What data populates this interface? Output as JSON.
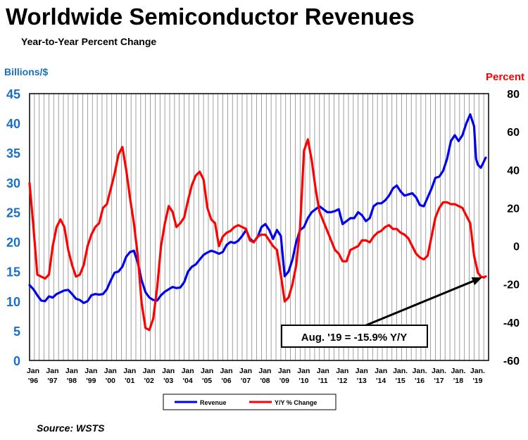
{
  "chart_data": {
    "type": "line",
    "title": "Worldwide Semiconductor Revenues",
    "subtitle": "Year-to-Year Percent Change",
    "y_left_label": "Billions/$",
    "y_right_label": "Percent",
    "y_left_ticks": [
      "45",
      "40",
      "35",
      "30",
      "25",
      "20",
      "15",
      "10",
      "5",
      "0"
    ],
    "y_right_ticks": [
      "80",
      "60",
      "40",
      "20",
      "0",
      "-20",
      "-40",
      "-60"
    ],
    "y_left_range": [
      0,
      45
    ],
    "y_right_range": [
      -60,
      80
    ],
    "x_range": [
      1996.0,
      2019.75
    ],
    "x_tick_labels": [
      {
        "top": "Jan",
        "bottom": "'96"
      },
      {
        "top": "Jan",
        "bottom": "'97"
      },
      {
        "top": "Jan",
        "bottom": "'98"
      },
      {
        "top": "Jan",
        "bottom": "'99"
      },
      {
        "top": "Jan",
        "bottom": "'00"
      },
      {
        "top": "Jan",
        "bottom": "'01"
      },
      {
        "top": "Jan",
        "bottom": "'02"
      },
      {
        "top": "Jan",
        "bottom": "'03"
      },
      {
        "top": "Jan",
        "bottom": "'04"
      },
      {
        "top": "Jan",
        "bottom": "'05"
      },
      {
        "top": "Jan",
        "bottom": "'06"
      },
      {
        "top": "Jan",
        "bottom": "'07"
      },
      {
        "top": "Jan",
        "bottom": "'08"
      },
      {
        "top": "Jan",
        "bottom": "'09"
      },
      {
        "top": "Jan",
        "bottom": "'10"
      },
      {
        "top": "Jan",
        "bottom": "'11"
      },
      {
        "top": "Jan",
        "bottom": "'12"
      },
      {
        "top": "Jan",
        "bottom": "'13"
      },
      {
        "top": "Jan",
        "bottom": "'14"
      },
      {
        "top": "Jan.",
        "bottom": "'15"
      },
      {
        "top": "Jan.",
        "bottom": "'16"
      },
      {
        "top": "Jan.",
        "bottom": "'17"
      },
      {
        "top": "Jan.",
        "bottom": "'18"
      },
      {
        "top": "Jan.",
        "bottom": "'19"
      }
    ],
    "grid": true,
    "legend_position": "bottom",
    "series": [
      {
        "name": "Revenue",
        "axis": "left",
        "color": "#0000ee",
        "points": [
          [
            1996.0,
            12.7
          ],
          [
            1996.2,
            12.0
          ],
          [
            1996.4,
            11.0
          ],
          [
            1996.6,
            10.1
          ],
          [
            1996.8,
            10.0
          ],
          [
            1997.0,
            10.8
          ],
          [
            1997.2,
            10.6
          ],
          [
            1997.4,
            11.2
          ],
          [
            1997.6,
            11.5
          ],
          [
            1997.8,
            11.8
          ],
          [
            1998.0,
            11.9
          ],
          [
            1998.2,
            11.2
          ],
          [
            1998.4,
            10.4
          ],
          [
            1998.6,
            10.2
          ],
          [
            1998.8,
            9.7
          ],
          [
            1999.0,
            10.0
          ],
          [
            1999.2,
            11.0
          ],
          [
            1999.4,
            11.2
          ],
          [
            1999.6,
            11.1
          ],
          [
            1999.8,
            11.2
          ],
          [
            2000.0,
            12.0
          ],
          [
            2000.2,
            13.5
          ],
          [
            2000.4,
            14.8
          ],
          [
            2000.6,
            15.0
          ],
          [
            2000.8,
            15.8
          ],
          [
            2001.0,
            17.5
          ],
          [
            2001.2,
            18.3
          ],
          [
            2001.4,
            18.5
          ],
          [
            2001.6,
            16.5
          ],
          [
            2001.8,
            13.5
          ],
          [
            2002.0,
            11.5
          ],
          [
            2002.2,
            10.6
          ],
          [
            2002.4,
            10.2
          ],
          [
            2002.6,
            10.1
          ],
          [
            2002.8,
            11.0
          ],
          [
            2003.0,
            11.6
          ],
          [
            2003.2,
            12.0
          ],
          [
            2003.4,
            12.4
          ],
          [
            2003.6,
            12.2
          ],
          [
            2003.8,
            12.3
          ],
          [
            2004.0,
            13.2
          ],
          [
            2004.2,
            15.0
          ],
          [
            2004.4,
            15.8
          ],
          [
            2004.6,
            16.2
          ],
          [
            2004.8,
            17.0
          ],
          [
            2005.0,
            17.8
          ],
          [
            2005.2,
            18.2
          ],
          [
            2005.4,
            18.5
          ],
          [
            2005.6,
            18.3
          ],
          [
            2005.8,
            18.0
          ],
          [
            2006.0,
            18.3
          ],
          [
            2006.2,
            19.5
          ],
          [
            2006.4,
            20.0
          ],
          [
            2006.6,
            19.8
          ],
          [
            2006.8,
            20.2
          ],
          [
            2007.0,
            21.0
          ],
          [
            2007.2,
            22.0
          ],
          [
            2007.4,
            20.5
          ],
          [
            2007.6,
            20.0
          ],
          [
            2007.8,
            20.8
          ],
          [
            2008.0,
            22.5
          ],
          [
            2008.2,
            23.0
          ],
          [
            2008.4,
            22.0
          ],
          [
            2008.6,
            20.5
          ],
          [
            2008.8,
            22.0
          ],
          [
            2009.0,
            21.0
          ],
          [
            2009.2,
            14.2
          ],
          [
            2009.4,
            15.0
          ],
          [
            2009.6,
            17.0
          ],
          [
            2009.8,
            20.0
          ],
          [
            2010.0,
            22.0
          ],
          [
            2010.2,
            22.5
          ],
          [
            2010.4,
            24.0
          ],
          [
            2010.6,
            25.0
          ],
          [
            2010.8,
            25.5
          ],
          [
            2011.0,
            26.0
          ],
          [
            2011.2,
            25.5
          ],
          [
            2011.4,
            25.0
          ],
          [
            2011.6,
            25.0
          ],
          [
            2011.8,
            25.2
          ],
          [
            2012.0,
            25.5
          ],
          [
            2012.2,
            23.0
          ],
          [
            2012.4,
            23.5
          ],
          [
            2012.6,
            24.0
          ],
          [
            2012.8,
            24.0
          ],
          [
            2013.0,
            25.0
          ],
          [
            2013.2,
            24.5
          ],
          [
            2013.4,
            23.5
          ],
          [
            2013.6,
            24.0
          ],
          [
            2013.8,
            26.0
          ],
          [
            2014.0,
            26.5
          ],
          [
            2014.2,
            26.5
          ],
          [
            2014.4,
            27.0
          ],
          [
            2014.6,
            27.8
          ],
          [
            2014.8,
            29.0
          ],
          [
            2015.0,
            29.5
          ],
          [
            2015.2,
            28.5
          ],
          [
            2015.4,
            27.8
          ],
          [
            2015.6,
            28.0
          ],
          [
            2015.8,
            28.2
          ],
          [
            2016.0,
            27.5
          ],
          [
            2016.2,
            26.2
          ],
          [
            2016.4,
            26.0
          ],
          [
            2016.6,
            27.5
          ],
          [
            2016.8,
            29.0
          ],
          [
            2017.0,
            30.8
          ],
          [
            2017.2,
            31.0
          ],
          [
            2017.4,
            32.0
          ],
          [
            2017.6,
            34.0
          ],
          [
            2017.8,
            37.0
          ],
          [
            2018.0,
            38.0
          ],
          [
            2018.2,
            37.0
          ],
          [
            2018.4,
            38.0
          ],
          [
            2018.6,
            40.0
          ],
          [
            2018.8,
            41.5
          ],
          [
            2019.0,
            39.5
          ],
          [
            2019.1,
            34.0
          ],
          [
            2019.2,
            33.0
          ],
          [
            2019.35,
            32.5
          ],
          [
            2019.5,
            33.5
          ],
          [
            2019.6,
            34.2
          ]
        ]
      },
      {
        "name": "Y/Y % Change",
        "axis": "right",
        "color": "#ff0000",
        "points": [
          [
            1996.0,
            33
          ],
          [
            1996.2,
            10
          ],
          [
            1996.4,
            -15
          ],
          [
            1996.6,
            -16
          ],
          [
            1996.8,
            -17
          ],
          [
            1997.0,
            -15
          ],
          [
            1997.2,
            0
          ],
          [
            1997.4,
            10
          ],
          [
            1997.6,
            14
          ],
          [
            1997.8,
            10
          ],
          [
            1998.0,
            -2
          ],
          [
            1998.2,
            -10
          ],
          [
            1998.4,
            -16
          ],
          [
            1998.6,
            -15
          ],
          [
            1998.8,
            -10
          ],
          [
            1999.0,
            0
          ],
          [
            1999.2,
            6
          ],
          [
            1999.4,
            10
          ],
          [
            1999.6,
            12
          ],
          [
            1999.8,
            20
          ],
          [
            2000.0,
            22
          ],
          [
            2000.2,
            30
          ],
          [
            2000.4,
            38
          ],
          [
            2000.6,
            48
          ],
          [
            2000.8,
            52
          ],
          [
            2001.0,
            40
          ],
          [
            2001.2,
            25
          ],
          [
            2001.4,
            12
          ],
          [
            2001.6,
            -5
          ],
          [
            2001.8,
            -30
          ],
          [
            2002.0,
            -43
          ],
          [
            2002.2,
            -44
          ],
          [
            2002.4,
            -38
          ],
          [
            2002.6,
            -22
          ],
          [
            2002.8,
            0
          ],
          [
            2003.0,
            12
          ],
          [
            2003.2,
            21
          ],
          [
            2003.4,
            18
          ],
          [
            2003.6,
            10
          ],
          [
            2003.8,
            12
          ],
          [
            2004.0,
            15
          ],
          [
            2004.2,
            24
          ],
          [
            2004.4,
            32
          ],
          [
            2004.6,
            37
          ],
          [
            2004.8,
            39
          ],
          [
            2005.0,
            35
          ],
          [
            2005.2,
            20
          ],
          [
            2005.4,
            14
          ],
          [
            2005.6,
            12
          ],
          [
            2005.8,
            0
          ],
          [
            2006.0,
            5
          ],
          [
            2006.2,
            7
          ],
          [
            2006.4,
            8
          ],
          [
            2006.6,
            10
          ],
          [
            2006.8,
            11
          ],
          [
            2007.0,
            10
          ],
          [
            2007.2,
            9
          ],
          [
            2007.4,
            3
          ],
          [
            2007.6,
            2
          ],
          [
            2007.8,
            5
          ],
          [
            2008.0,
            6
          ],
          [
            2008.2,
            6
          ],
          [
            2008.4,
            3
          ],
          [
            2008.6,
            0
          ],
          [
            2008.8,
            -2
          ],
          [
            2009.0,
            -15
          ],
          [
            2009.2,
            -29
          ],
          [
            2009.4,
            -27
          ],
          [
            2009.6,
            -20
          ],
          [
            2009.8,
            -10
          ],
          [
            2010.0,
            10
          ],
          [
            2010.2,
            50
          ],
          [
            2010.4,
            56
          ],
          [
            2010.6,
            45
          ],
          [
            2010.8,
            30
          ],
          [
            2011.0,
            18
          ],
          [
            2011.2,
            13
          ],
          [
            2011.4,
            8
          ],
          [
            2011.6,
            3
          ],
          [
            2011.8,
            -2
          ],
          [
            2012.0,
            -4
          ],
          [
            2012.2,
            -8
          ],
          [
            2012.4,
            -8
          ],
          [
            2012.6,
            -2
          ],
          [
            2012.8,
            -1
          ],
          [
            2013.0,
            0
          ],
          [
            2013.2,
            3
          ],
          [
            2013.4,
            3
          ],
          [
            2013.6,
            2
          ],
          [
            2013.8,
            5
          ],
          [
            2014.0,
            7
          ],
          [
            2014.2,
            8
          ],
          [
            2014.4,
            10
          ],
          [
            2014.6,
            11
          ],
          [
            2014.8,
            9
          ],
          [
            2015.0,
            9
          ],
          [
            2015.2,
            7
          ],
          [
            2015.4,
            6
          ],
          [
            2015.6,
            4
          ],
          [
            2015.8,
            0
          ],
          [
            2016.0,
            -4
          ],
          [
            2016.2,
            -6
          ],
          [
            2016.4,
            -7
          ],
          [
            2016.6,
            -5
          ],
          [
            2016.8,
            5
          ],
          [
            2017.0,
            15
          ],
          [
            2017.2,
            20
          ],
          [
            2017.4,
            23
          ],
          [
            2017.6,
            23
          ],
          [
            2017.8,
            22
          ],
          [
            2018.0,
            22
          ],
          [
            2018.2,
            21
          ],
          [
            2018.4,
            20
          ],
          [
            2018.6,
            16
          ],
          [
            2018.8,
            12
          ],
          [
            2019.0,
            -5
          ],
          [
            2019.2,
            -14
          ],
          [
            2019.35,
            -16
          ],
          [
            2019.5,
            -16.5
          ],
          [
            2019.6,
            -15.9
          ]
        ]
      }
    ],
    "annotation": {
      "text": "Aug. '19 = -15.9% Y/Y",
      "target_x": 2019.55,
      "target_y_right": -15.9
    },
    "source": "Source: WSTS",
    "colors": {
      "left_axis": "#1a6fc4",
      "right_axis": "#ff0000",
      "revenue": "#0000ee",
      "change": "#ff0000"
    }
  }
}
